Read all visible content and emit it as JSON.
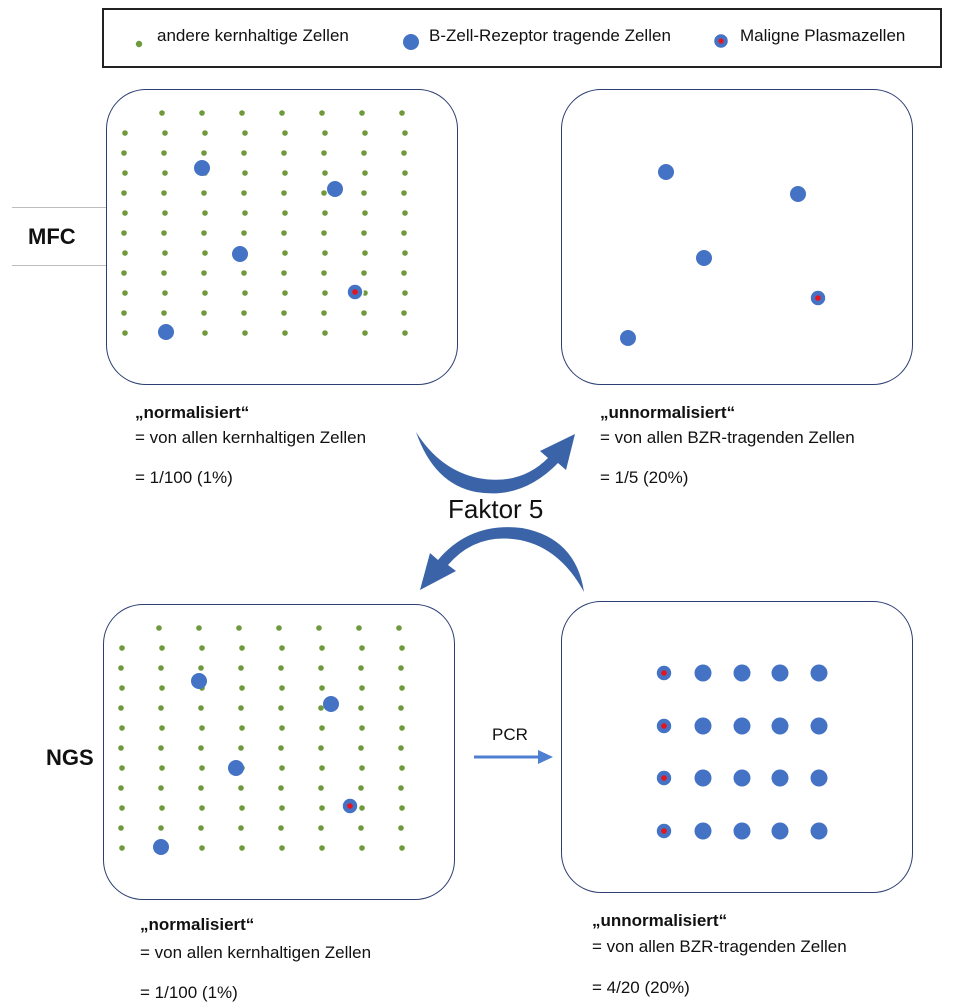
{
  "legend": {
    "items": [
      {
        "label": "andere kernhaltige Zellen",
        "marker": "green-dot"
      },
      {
        "label": "B-Zell-Rezeptor tragende Zellen",
        "marker": "blue-dot"
      },
      {
        "label": "Maligne Plasmazellen",
        "marker": "blue-dot-red-center"
      }
    ]
  },
  "rows": {
    "mfc": "MFC",
    "ngs": "NGS"
  },
  "panels": {
    "mfc_left": {
      "title": "„normalisiert“",
      "desc": "= von allen kernhaltigen Zellen",
      "ratio": "= 1/100 (1%)"
    },
    "mfc_right": {
      "title": "„unnormalisiert“",
      "desc": "= von allen BZR-tragenden Zellen",
      "ratio": "= 1/5 (20%)"
    },
    "ngs_left": {
      "title": "„normalisiert“",
      "desc": "= von allen kernhaltigen Zellen",
      "ratio": "= 1/100 (1%)"
    },
    "ngs_right": {
      "title": "„unnormalisiert“",
      "desc": "= von allen BZR-tragenden Zellen",
      "ratio": "= 4/20 (20%)"
    }
  },
  "arrows": {
    "factor_label": "Faktor 5",
    "pcr_label": "PCR"
  },
  "colors": {
    "green_cell": "#6e9a3c",
    "blue_cell": "#4472c4",
    "malignant_center": "#e8141c",
    "box_border": "#2c3f73",
    "arrow": "#3b64a8"
  }
}
